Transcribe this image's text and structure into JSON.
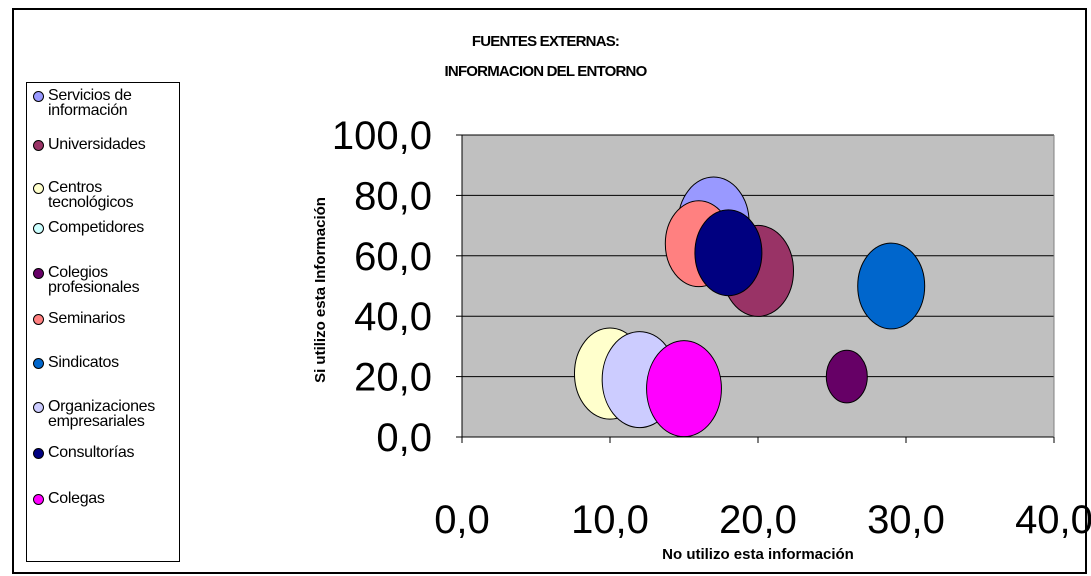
{
  "chart_data": {
    "type": "bubble",
    "title_line1": "FUENTES EXTERNAS:",
    "title_line2": "INFORMACION DEL ENTORNO",
    "xlabel": "No utilizo esta información",
    "ylabel": "Si utilizo esta Información",
    "xlim": [
      0,
      40
    ],
    "ylim": [
      0,
      100
    ],
    "x_ticks": [
      "0,0",
      "10,0",
      "20,0",
      "30,0",
      "40,0"
    ],
    "y_ticks": [
      "0,0",
      "20,0",
      "40,0",
      "60,0",
      "80,0",
      "100,0"
    ],
    "grid": true,
    "legend_position": "left",
    "plot_background": "#c0c0c0",
    "series": [
      {
        "name": "Servicios de información",
        "x": 17,
        "y": 71,
        "size": 9,
        "color": "#9999ff"
      },
      {
        "name": "Universidades",
        "x": 20,
        "y": 55,
        "size": 9,
        "color": "#993366"
      },
      {
        "name": "Centros tecnológicos",
        "x": 10,
        "y": 21,
        "size": 9,
        "color": "#ffffcc"
      },
      {
        "name": "Competidores",
        "x": null,
        "y": null,
        "size": null,
        "color": "#ccffff"
      },
      {
        "name": "Colegios profesionales",
        "x": 26,
        "y": 20,
        "size": 3,
        "color": "#660066"
      },
      {
        "name": "Seminarios",
        "x": 16,
        "y": 64,
        "size": 8,
        "color": "#ff8080"
      },
      {
        "name": "Sindicatos",
        "x": 29,
        "y": 50,
        "size": 8,
        "color": "#0066cc"
      },
      {
        "name": "Organizaciones empresariales",
        "x": 12,
        "y": 19,
        "size": 10,
        "color": "#ccccff"
      },
      {
        "name": "Consultorías",
        "x": 18,
        "y": 61,
        "size": 8,
        "color": "#000080"
      },
      {
        "name": "Colegas",
        "x": 15,
        "y": 16,
        "size": 10,
        "color": "#ff00ff"
      }
    ]
  }
}
